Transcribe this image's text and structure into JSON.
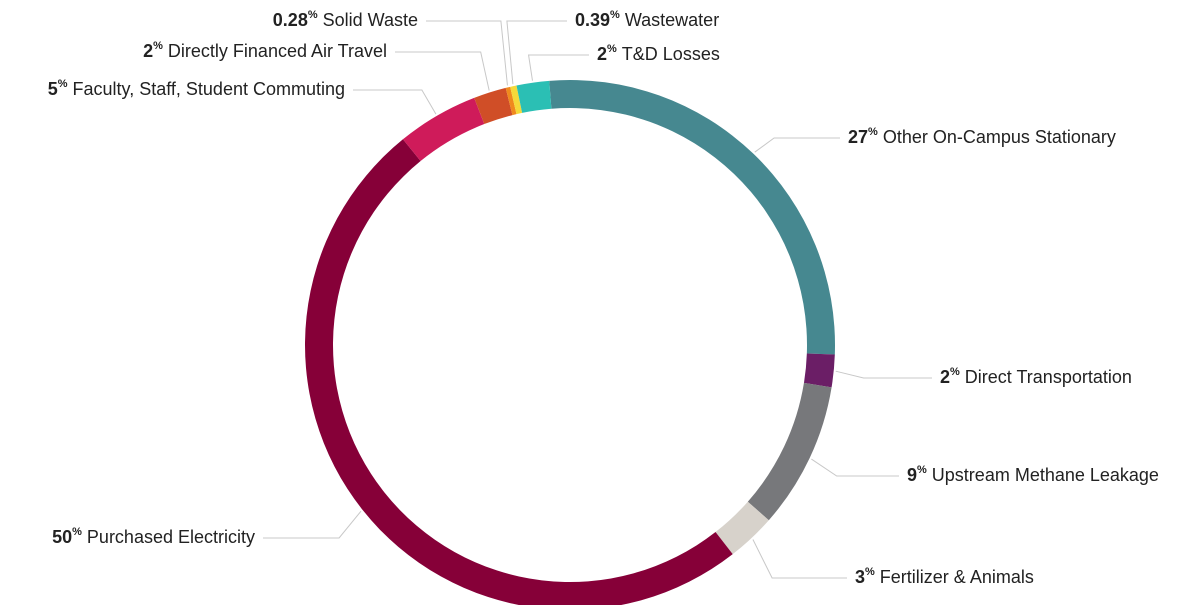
{
  "chart_data": {
    "type": "donut",
    "unit": "%",
    "categories": [
      "Other On-Campus Stationary",
      "Direct Transportation",
      "Upstream Methane Leakage",
      "Fertilizer & Animals",
      "Purchased Electricity",
      "Faculty, Staff, Student Commuting",
      "Directly Financed Air Travel",
      "Solid Waste",
      "Wastewater",
      "T&D Losses"
    ],
    "values": [
      27,
      2,
      9,
      3,
      50,
      5,
      2,
      0.28,
      0.39,
      2
    ],
    "colors": [
      "#468890",
      "#6b1e66",
      "#77787b",
      "#d7d2cb",
      "#860038",
      "#cf1b5a",
      "#d04e27",
      "#f08a1d",
      "#f5d93a",
      "#2bbfb4"
    ]
  }
}
